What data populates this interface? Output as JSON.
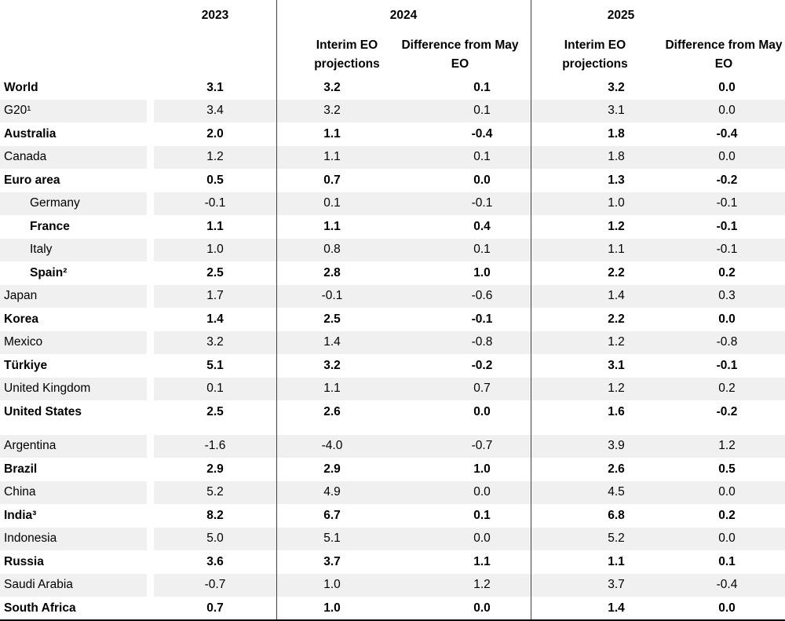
{
  "colors": {
    "stripe": "#f0f0f0",
    "column_rule": "#404040",
    "bottom_border": "#000000"
  },
  "chart_data": {
    "type": "table",
    "column_groups": [
      {
        "year": "2023",
        "subcolumns": []
      },
      {
        "year": "2024",
        "subcolumns": [
          "Interim EO projections",
          "Difference from May EO"
        ]
      },
      {
        "year": "2025",
        "subcolumns": [
          "Interim EO projections",
          "Difference from May EO"
        ]
      }
    ],
    "rows": [
      {
        "label": "World",
        "indent": false,
        "emphasis": true,
        "gap_before": false,
        "values": {
          "y2023": "3.1",
          "y2024_interim": "3.2",
          "y2024_diff": "0.1",
          "y2025_interim": "3.2",
          "y2025_diff": "0.0"
        }
      },
      {
        "label": "G20¹",
        "indent": false,
        "emphasis": false,
        "gap_before": false,
        "values": {
          "y2023": "3.4",
          "y2024_interim": "3.2",
          "y2024_diff": "0.1",
          "y2025_interim": "3.1",
          "y2025_diff": "0.0"
        }
      },
      {
        "label": "Australia",
        "indent": false,
        "emphasis": true,
        "gap_before": false,
        "values": {
          "y2023": "2.0",
          "y2024_interim": "1.1",
          "y2024_diff": "-0.4",
          "y2025_interim": "1.8",
          "y2025_diff": "-0.4"
        }
      },
      {
        "label": "Canada",
        "indent": false,
        "emphasis": false,
        "gap_before": false,
        "values": {
          "y2023": "1.2",
          "y2024_interim": "1.1",
          "y2024_diff": "0.1",
          "y2025_interim": "1.8",
          "y2025_diff": "0.0"
        }
      },
      {
        "label": "Euro area",
        "indent": false,
        "emphasis": true,
        "gap_before": false,
        "values": {
          "y2023": "0.5",
          "y2024_interim": "0.7",
          "y2024_diff": "0.0",
          "y2025_interim": "1.3",
          "y2025_diff": "-0.2"
        }
      },
      {
        "label": "Germany",
        "indent": true,
        "emphasis": false,
        "gap_before": false,
        "values": {
          "y2023": "-0.1",
          "y2024_interim": "0.1",
          "y2024_diff": "-0.1",
          "y2025_interim": "1.0",
          "y2025_diff": "-0.1"
        }
      },
      {
        "label": "France",
        "indent": true,
        "emphasis": true,
        "gap_before": false,
        "values": {
          "y2023": "1.1",
          "y2024_interim": "1.1",
          "y2024_diff": "0.4",
          "y2025_interim": "1.2",
          "y2025_diff": "-0.1"
        }
      },
      {
        "label": "Italy",
        "indent": true,
        "emphasis": false,
        "gap_before": false,
        "values": {
          "y2023": "1.0",
          "y2024_interim": "0.8",
          "y2024_diff": "0.1",
          "y2025_interim": "1.1",
          "y2025_diff": "-0.1"
        }
      },
      {
        "label": "Spain²",
        "indent": true,
        "emphasis": true,
        "gap_before": false,
        "values": {
          "y2023": "2.5",
          "y2024_interim": "2.8",
          "y2024_diff": "1.0",
          "y2025_interim": "2.2",
          "y2025_diff": "0.2"
        }
      },
      {
        "label": "Japan",
        "indent": false,
        "emphasis": false,
        "gap_before": false,
        "values": {
          "y2023": "1.7",
          "y2024_interim": "-0.1",
          "y2024_diff": "-0.6",
          "y2025_interim": "1.4",
          "y2025_diff": "0.3"
        }
      },
      {
        "label": "Korea",
        "indent": false,
        "emphasis": true,
        "gap_before": false,
        "values": {
          "y2023": "1.4",
          "y2024_interim": "2.5",
          "y2024_diff": "-0.1",
          "y2025_interim": "2.2",
          "y2025_diff": "0.0"
        }
      },
      {
        "label": "Mexico",
        "indent": false,
        "emphasis": false,
        "gap_before": false,
        "values": {
          "y2023": "3.2",
          "y2024_interim": "1.4",
          "y2024_diff": "-0.8",
          "y2025_interim": "1.2",
          "y2025_diff": "-0.8"
        }
      },
      {
        "label": "Türkiye",
        "indent": false,
        "emphasis": true,
        "gap_before": false,
        "values": {
          "y2023": "5.1",
          "y2024_interim": "3.2",
          "y2024_diff": "-0.2",
          "y2025_interim": "3.1",
          "y2025_diff": "-0.1"
        }
      },
      {
        "label": "United Kingdom",
        "indent": false,
        "emphasis": false,
        "gap_before": false,
        "values": {
          "y2023": "0.1",
          "y2024_interim": "1.1",
          "y2024_diff": "0.7",
          "y2025_interim": "1.2",
          "y2025_diff": "0.2"
        }
      },
      {
        "label": "United States",
        "indent": false,
        "emphasis": true,
        "gap_before": false,
        "values": {
          "y2023": "2.5",
          "y2024_interim": "2.6",
          "y2024_diff": "0.0",
          "y2025_interim": "1.6",
          "y2025_diff": "-0.2"
        }
      },
      {
        "label": "Argentina",
        "indent": false,
        "emphasis": false,
        "gap_before": true,
        "values": {
          "y2023": "-1.6",
          "y2024_interim": "-4.0",
          "y2024_diff": "-0.7",
          "y2025_interim": "3.9",
          "y2025_diff": "1.2"
        }
      },
      {
        "label": "Brazil",
        "indent": false,
        "emphasis": true,
        "gap_before": false,
        "values": {
          "y2023": "2.9",
          "y2024_interim": "2.9",
          "y2024_diff": "1.0",
          "y2025_interim": "2.6",
          "y2025_diff": "0.5"
        }
      },
      {
        "label": "China",
        "indent": false,
        "emphasis": false,
        "gap_before": false,
        "values": {
          "y2023": "5.2",
          "y2024_interim": "4.9",
          "y2024_diff": "0.0",
          "y2025_interim": "4.5",
          "y2025_diff": "0.0"
        }
      },
      {
        "label": "India³",
        "indent": false,
        "emphasis": true,
        "gap_before": false,
        "values": {
          "y2023": "8.2",
          "y2024_interim": "6.7",
          "y2024_diff": "0.1",
          "y2025_interim": "6.8",
          "y2025_diff": "0.2"
        }
      },
      {
        "label": "Indonesia",
        "indent": false,
        "emphasis": false,
        "gap_before": false,
        "values": {
          "y2023": "5.0",
          "y2024_interim": "5.1",
          "y2024_diff": "0.0",
          "y2025_interim": "5.2",
          "y2025_diff": "0.0"
        }
      },
      {
        "label": "Russia",
        "indent": false,
        "emphasis": true,
        "gap_before": false,
        "values": {
          "y2023": "3.6",
          "y2024_interim": "3.7",
          "y2024_diff": "1.1",
          "y2025_interim": "1.1",
          "y2025_diff": "0.1"
        }
      },
      {
        "label": "Saudi Arabia",
        "indent": false,
        "emphasis": false,
        "gap_before": false,
        "values": {
          "y2023": "-0.7",
          "y2024_interim": "1.0",
          "y2024_diff": "1.2",
          "y2025_interim": "3.7",
          "y2025_diff": "-0.4"
        }
      },
      {
        "label": "South Africa",
        "indent": false,
        "emphasis": true,
        "gap_before": false,
        "values": {
          "y2023": "0.7",
          "y2024_interim": "1.0",
          "y2024_diff": "0.0",
          "y2025_interim": "1.4",
          "y2025_diff": "0.0"
        }
      }
    ]
  }
}
